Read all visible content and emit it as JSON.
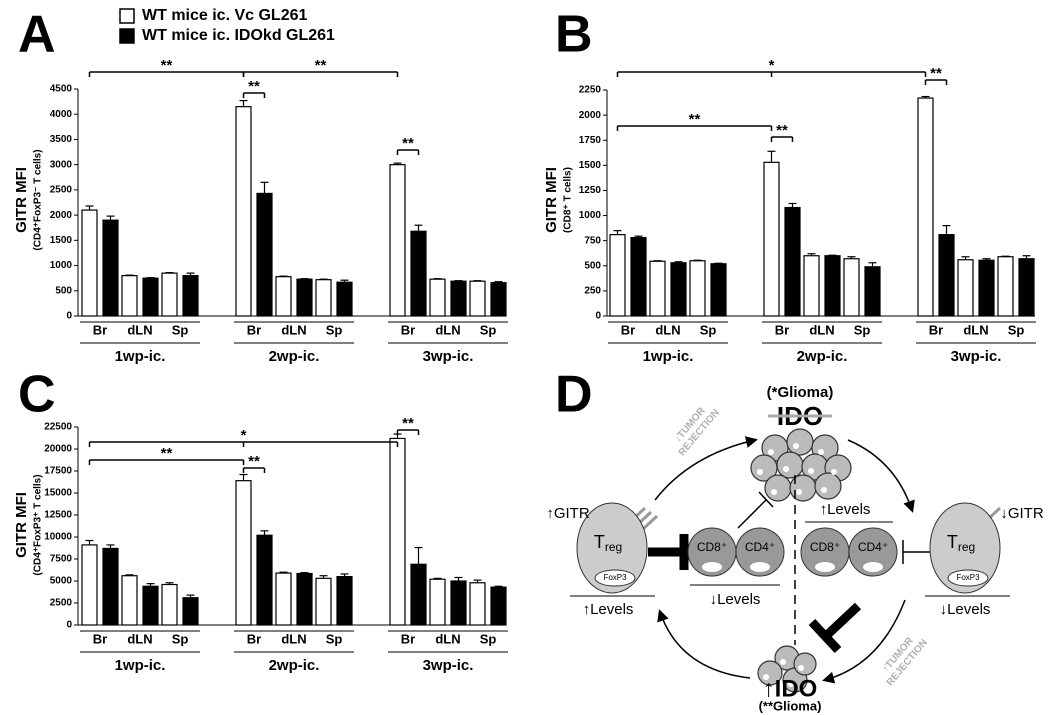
{
  "chart_data": [
    {
      "type": "bar",
      "panel": "A",
      "ylabel": "GITR MFI",
      "ylabel_sub": "(CD4⁺FoxP3⁻ T cells)",
      "categories": [
        "Br",
        "dLN",
        "Sp",
        "Br",
        "dLN",
        "Sp",
        "Br",
        "dLN",
        "Sp"
      ],
      "groups": [
        "1wp-ic.",
        "2wp-ic.",
        "3wp-ic."
      ],
      "series": [
        {
          "name": "WT mice ic. Vc GL261",
          "color": "#ffffff",
          "values": [
            2100,
            800,
            850,
            4150,
            780,
            720,
            3000,
            730,
            690
          ],
          "errors": [
            80,
            10,
            10,
            120,
            10,
            10,
            30,
            10,
            10
          ]
        },
        {
          "name": "WT mice ic. IDOkd GL261",
          "color": "#000000",
          "values": [
            1900,
            750,
            800,
            2430,
            730,
            670,
            1680,
            690,
            660
          ],
          "errors": [
            80,
            10,
            50,
            220,
            10,
            40,
            120,
            10,
            20
          ]
        }
      ],
      "ylim": [
        0,
        4500
      ],
      "yticks": [
        0,
        500,
        1000,
        1500,
        2000,
        2500,
        3000,
        3500,
        4000,
        4500
      ],
      "annotations": [
        "**",
        "**",
        "**",
        "**"
      ]
    },
    {
      "type": "bar",
      "panel": "B",
      "ylabel": "GITR MFI",
      "ylabel_sub": "(CD8⁺ T cells)",
      "categories": [
        "Br",
        "dLN",
        "Sp",
        "Br",
        "dLN",
        "Sp",
        "Br",
        "dLN",
        "Sp"
      ],
      "groups": [
        "1wp-ic.",
        "2wp-ic.",
        "3wp-ic."
      ],
      "series": [
        {
          "color": "#ffffff",
          "values": [
            810,
            545,
            550,
            1530,
            600,
            570,
            2170,
            560,
            590
          ],
          "errors": [
            40,
            5,
            5,
            110,
            20,
            20,
            15,
            30,
            5
          ]
        },
        {
          "color": "#000000",
          "values": [
            780,
            530,
            520,
            1080,
            600,
            490,
            810,
            555,
            570
          ],
          "errors": [
            15,
            10,
            5,
            40,
            5,
            40,
            90,
            15,
            30
          ]
        }
      ],
      "ylim": [
        0,
        2250
      ],
      "yticks": [
        0,
        250,
        500,
        750,
        1000,
        1250,
        1500,
        1750,
        2000,
        2250
      ],
      "annotations": [
        "*",
        "**",
        "**",
        "**"
      ]
    },
    {
      "type": "bar",
      "panel": "C",
      "ylabel": "GITR MFI",
      "ylabel_sub": "(CD4⁺FoxP3⁺ T cells)",
      "categories": [
        "Br",
        "dLN",
        "Sp",
        "Br",
        "dLN",
        "Sp",
        "Br",
        "dLN",
        "Sp"
      ],
      "groups": [
        "1wp-ic.",
        "2wp-ic.",
        "3wp-ic."
      ],
      "series": [
        {
          "color": "#ffffff",
          "values": [
            9100,
            5600,
            4600,
            16400,
            5900,
            5300,
            21200,
            5200,
            4800
          ],
          "errors": [
            500,
            100,
            200,
            700,
            100,
            300,
            500,
            100,
            300
          ]
        },
        {
          "color": "#000000",
          "values": [
            8700,
            4400,
            3100,
            10200,
            5850,
            5500,
            6900,
            5000,
            4300
          ],
          "errors": [
            400,
            300,
            300,
            500,
            100,
            300,
            1900,
            400,
            100
          ]
        }
      ],
      "ylim": [
        0,
        22500
      ],
      "yticks": [
        0,
        2500,
        5000,
        7500,
        10000,
        12500,
        15000,
        17500,
        20000,
        22500
      ],
      "annotations": [
        "*",
        "**",
        "**",
        "**"
      ]
    }
  ],
  "diagram": {
    "panel": "D",
    "top_glioma": "(*Glioma)",
    "top_ido": "IDO",
    "rejection_top": [
      "↓TUMOR",
      "REJECTION"
    ],
    "rejection_bottom": [
      "↑TUMOR",
      "REJECTION"
    ],
    "left_gitr": "↑GITR",
    "left_treg": "T",
    "left_treg_sub": "reg",
    "left_foxp3": "FoxP3",
    "left_levels": "↑Levels",
    "mid_cd8": "CD8⁺",
    "mid_cd4": "CD4⁺",
    "mid_levels": "↓Levels",
    "right_levels_top": "↑Levels",
    "right_cd8": "CD8⁺",
    "right_cd4": "CD4⁺",
    "right_gitr": "↓GITR",
    "right_treg": "T",
    "right_treg_sub": "reg",
    "right_foxp3": "FoxP3",
    "right_levels": "↓Levels",
    "bottom_ido": "↑IDO",
    "bottom_glioma": "(**Glioma)"
  }
}
